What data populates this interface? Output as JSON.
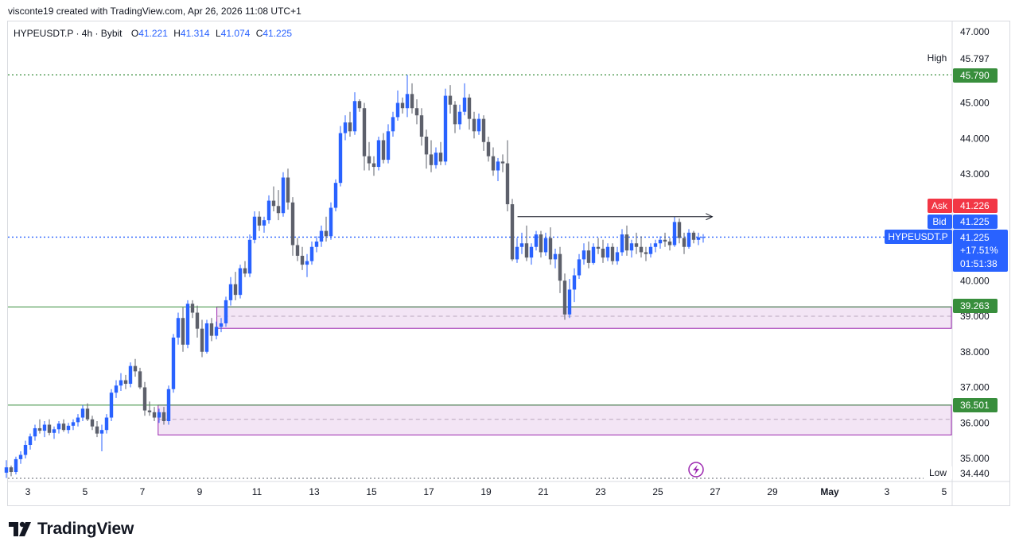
{
  "header": {
    "attribution": "visconte19 created with TradingView.com, Apr 26, 2026 11:08 UTC+1"
  },
  "legend": {
    "symbol": "HYPEUSDT.P · 4h · Bybit",
    "open_label": "O",
    "open": "41.221",
    "high_label": "H",
    "high": "41.314",
    "low_label": "L",
    "low": "41.074",
    "close_label": "C",
    "close": "41.225"
  },
  "footer": {
    "brand": "TradingView"
  },
  "chart_data": {
    "type": "candlestick",
    "symbol": "HYPEUSDT.P",
    "timeframe": "4h",
    "exchange": "Bybit",
    "ylim": [
      34.3,
      47.3
    ],
    "y_ticks": [
      "47.000",
      "45.000",
      "44.000",
      "43.000",
      "40.000",
      "39.000",
      "38.000",
      "37.000",
      "36.000",
      "35.000"
    ],
    "y_tick_values": [
      47,
      45,
      44,
      43,
      40,
      39,
      38,
      37,
      36,
      35
    ],
    "x_ticks": [
      "3",
      "5",
      "7",
      "9",
      "11",
      "13",
      "15",
      "17",
      "19",
      "21",
      "23",
      "25",
      "27",
      "29",
      "May",
      "3",
      "5"
    ],
    "x_tick_days": [
      3,
      5,
      7,
      9,
      11,
      13,
      15,
      17,
      19,
      21,
      23,
      25,
      27,
      29,
      31,
      33,
      35
    ],
    "xlim_days": [
      2.2,
      35.3
    ],
    "price_labels": {
      "high_tag": "High",
      "high_value": "45.797",
      "level_1": "45.790",
      "ask_tag": "Ask",
      "ask_value": "41.226",
      "bid_tag": "Bid",
      "bid_value": "41.225",
      "symbol_tag": "HYPEUSDT.P",
      "last_value": "41.225",
      "change": "+17.51%",
      "countdown": "01:51:38",
      "level_2": "39.263",
      "level_3": "36.501",
      "low_tag": "Low",
      "low_value": "34.440"
    },
    "levels": {
      "high": 45.797,
      "resistance": 45.79,
      "last": 41.225,
      "support_1": 39.263,
      "support_2": 36.501,
      "low": 34.44
    },
    "zones": [
      {
        "from_day": 9.6,
        "top": 39.263,
        "bottom": 38.66,
        "mid": 39.0
      },
      {
        "from_day": 7.55,
        "top": 36.501,
        "bottom": 35.66,
        "mid": 36.1
      }
    ],
    "arrow_line": {
      "from_day": 20.1,
      "to_day": 26.9,
      "price": 41.8
    },
    "colors": {
      "up": "#2962ff",
      "down": "#5d606b",
      "green_level": "#388e3c",
      "ask": "#f23645",
      "bid": "#2962ff",
      "zone_fill": "#f3e5f5",
      "zone_border": "#9c27b0"
    },
    "candles_ohlc_by_4h": [
      [
        34.6,
        34.95,
        34.45,
        34.75
      ],
      [
        34.75,
        34.8,
        34.5,
        34.62
      ],
      [
        34.62,
        35.05,
        34.55,
        34.98
      ],
      [
        34.98,
        35.2,
        34.85,
        35.1
      ],
      [
        35.1,
        35.5,
        35.0,
        35.38
      ],
      [
        35.38,
        35.7,
        35.25,
        35.62
      ],
      [
        35.62,
        35.95,
        35.5,
        35.85
      ],
      [
        35.85,
        36.1,
        35.7,
        35.78
      ],
      [
        35.78,
        36.05,
        35.6,
        35.95
      ],
      [
        35.95,
        36.1,
        35.65,
        35.72
      ],
      [
        35.72,
        35.9,
        35.55,
        35.82
      ],
      [
        35.82,
        36.05,
        35.7,
        35.98
      ],
      [
        35.98,
        36.1,
        35.75,
        35.8
      ],
      [
        35.8,
        36.0,
        35.7,
        35.92
      ],
      [
        35.92,
        36.1,
        35.8,
        36.02
      ],
      [
        36.02,
        36.25,
        35.9,
        36.15
      ],
      [
        36.15,
        36.5,
        36.05,
        36.4
      ],
      [
        36.4,
        36.55,
        36.05,
        36.1
      ],
      [
        36.1,
        36.2,
        35.8,
        35.9
      ],
      [
        35.9,
        36.05,
        35.6,
        35.7
      ],
      [
        35.7,
        35.95,
        35.2,
        35.8
      ],
      [
        35.8,
        36.25,
        35.7,
        36.15
      ],
      [
        36.15,
        36.95,
        36.05,
        36.85
      ],
      [
        36.85,
        37.2,
        36.7,
        37.05
      ],
      [
        37.05,
        37.4,
        36.9,
        37.2
      ],
      [
        37.2,
        37.35,
        36.95,
        37.1
      ],
      [
        37.1,
        37.7,
        37.0,
        37.6
      ],
      [
        37.6,
        37.8,
        37.3,
        37.45
      ],
      [
        37.45,
        37.55,
        36.95,
        37.0
      ],
      [
        37.0,
        37.15,
        36.2,
        36.35
      ],
      [
        36.35,
        36.6,
        36.2,
        36.3
      ],
      [
        36.3,
        36.45,
        36.05,
        36.15
      ],
      [
        36.15,
        36.4,
        36.0,
        36.3
      ],
      [
        36.3,
        36.45,
        35.95,
        36.05
      ],
      [
        36.05,
        37.05,
        35.95,
        36.95
      ],
      [
        36.95,
        38.5,
        36.85,
        38.4
      ],
      [
        38.4,
        39.1,
        38.2,
        38.95
      ],
      [
        38.95,
        39.25,
        38.0,
        38.2
      ],
      [
        38.2,
        39.45,
        38.1,
        39.35
      ],
      [
        39.35,
        39.45,
        38.95,
        39.1
      ],
      [
        39.1,
        39.3,
        38.4,
        38.65
      ],
      [
        38.65,
        38.9,
        37.85,
        38.0
      ],
      [
        38.0,
        38.9,
        37.95,
        38.8
      ],
      [
        38.8,
        38.95,
        38.3,
        38.45
      ],
      [
        38.45,
        38.85,
        38.35,
        38.7
      ],
      [
        38.7,
        38.95,
        38.55,
        38.8
      ],
      [
        38.8,
        39.55,
        38.7,
        39.45
      ],
      [
        39.45,
        40.1,
        39.3,
        39.9
      ],
      [
        39.9,
        40.25,
        39.45,
        39.6
      ],
      [
        39.6,
        40.45,
        39.5,
        40.35
      ],
      [
        40.35,
        40.55,
        40.1,
        40.2
      ],
      [
        40.2,
        41.3,
        40.1,
        41.15
      ],
      [
        41.15,
        41.95,
        41.05,
        41.8
      ],
      [
        41.8,
        41.95,
        41.4,
        41.55
      ],
      [
        41.55,
        41.8,
        41.35,
        41.7
      ],
      [
        41.7,
        42.4,
        41.6,
        42.25
      ],
      [
        42.25,
        42.65,
        41.95,
        42.1
      ],
      [
        42.1,
        42.55,
        41.7,
        41.9
      ],
      [
        41.9,
        43.05,
        41.8,
        42.9
      ],
      [
        42.9,
        43.15,
        42.0,
        42.2
      ],
      [
        42.2,
        42.35,
        40.7,
        41.0
      ],
      [
        41.0,
        41.2,
        40.55,
        40.7
      ],
      [
        40.7,
        40.95,
        40.3,
        40.45
      ],
      [
        40.45,
        40.75,
        40.1,
        40.55
      ],
      [
        40.55,
        41.1,
        40.45,
        40.95
      ],
      [
        40.95,
        41.25,
        40.8,
        41.1
      ],
      [
        41.1,
        41.55,
        40.95,
        41.4
      ],
      [
        41.4,
        41.8,
        41.1,
        41.25
      ],
      [
        41.25,
        42.2,
        41.15,
        42.05
      ],
      [
        42.05,
        42.85,
        41.95,
        42.75
      ],
      [
        42.75,
        44.35,
        42.65,
        44.15
      ],
      [
        44.15,
        44.65,
        43.95,
        44.45
      ],
      [
        44.45,
        44.75,
        44.05,
        44.2
      ],
      [
        44.2,
        45.3,
        44.1,
        45.05
      ],
      [
        45.05,
        45.1,
        44.75,
        44.85
      ],
      [
        44.85,
        45.0,
        43.1,
        43.5
      ],
      [
        43.5,
        43.9,
        43.1,
        43.3
      ],
      [
        43.3,
        43.5,
        42.95,
        43.2
      ],
      [
        43.2,
        44.05,
        43.1,
        43.95
      ],
      [
        43.95,
        44.15,
        43.3,
        43.4
      ],
      [
        43.4,
        44.4,
        43.3,
        44.2
      ],
      [
        44.2,
        44.75,
        44.05,
        44.6
      ],
      [
        44.6,
        45.35,
        44.5,
        45.0
      ],
      [
        45.0,
        45.15,
        44.7,
        44.85
      ],
      [
        44.85,
        45.79,
        44.6,
        45.25
      ],
      [
        45.25,
        45.55,
        44.7,
        44.85
      ],
      [
        44.85,
        45.1,
        44.4,
        44.65
      ],
      [
        44.65,
        44.85,
        43.8,
        44.05
      ],
      [
        44.05,
        44.25,
        43.15,
        43.55
      ],
      [
        43.55,
        43.95,
        43.05,
        43.25
      ],
      [
        43.25,
        43.75,
        43.15,
        43.6
      ],
      [
        43.6,
        43.9,
        43.25,
        43.35
      ],
      [
        43.35,
        45.4,
        43.25,
        45.2
      ],
      [
        45.2,
        45.5,
        44.7,
        44.95
      ],
      [
        44.95,
        45.05,
        44.15,
        44.4
      ],
      [
        44.4,
        44.95,
        44.25,
        44.75
      ],
      [
        44.75,
        45.55,
        44.65,
        45.15
      ],
      [
        45.15,
        45.25,
        44.25,
        44.55
      ],
      [
        44.55,
        44.75,
        44.0,
        44.2
      ],
      [
        44.2,
        44.7,
        44.1,
        44.55
      ],
      [
        44.55,
        44.65,
        43.65,
        43.9
      ],
      [
        43.9,
        44.05,
        43.35,
        43.5
      ],
      [
        43.5,
        43.75,
        42.95,
        43.1
      ],
      [
        43.1,
        43.45,
        42.8,
        43.35
      ],
      [
        43.35,
        43.55,
        43.05,
        43.3
      ],
      [
        43.3,
        43.95,
        41.95,
        42.15
      ],
      [
        42.15,
        42.3,
        40.55,
        40.6
      ],
      [
        40.6,
        41.2,
        40.5,
        40.95
      ],
      [
        40.95,
        41.35,
        40.75,
        41.05
      ],
      [
        41.05,
        41.55,
        40.55,
        40.65
      ],
      [
        40.65,
        41.05,
        40.45,
        40.95
      ],
      [
        40.95,
        41.4,
        40.85,
        41.3
      ],
      [
        41.3,
        41.4,
        40.65,
        40.8
      ],
      [
        40.8,
        41.35,
        40.7,
        41.2
      ],
      [
        41.2,
        41.5,
        40.45,
        40.6
      ],
      [
        40.6,
        40.9,
        40.35,
        40.75
      ],
      [
        40.75,
        40.95,
        39.65,
        40.0
      ],
      [
        40.0,
        40.2,
        38.9,
        39.05
      ],
      [
        39.05,
        40.05,
        38.95,
        39.75
      ],
      [
        39.75,
        40.35,
        39.4,
        40.15
      ],
      [
        40.15,
        40.75,
        40.05,
        40.6
      ],
      [
        40.6,
        41.05,
        40.45,
        40.85
      ],
      [
        40.85,
        41.1,
        40.35,
        40.5
      ],
      [
        40.5,
        41.05,
        40.45,
        40.95
      ],
      [
        40.95,
        41.2,
        40.75,
        40.9
      ],
      [
        40.9,
        41.15,
        40.5,
        40.65
      ],
      [
        40.65,
        41.05,
        40.55,
        40.95
      ],
      [
        40.95,
        41.05,
        40.45,
        40.55
      ],
      [
        40.55,
        40.95,
        40.45,
        40.8
      ],
      [
        40.8,
        41.45,
        40.7,
        41.3
      ],
      [
        41.3,
        41.55,
        40.7,
        40.85
      ],
      [
        40.85,
        41.15,
        40.65,
        41.05
      ],
      [
        41.05,
        41.35,
        40.75,
        40.95
      ],
      [
        40.95,
        41.25,
        40.65,
        40.8
      ],
      [
        40.8,
        40.95,
        40.55,
        40.75
      ],
      [
        40.75,
        41.05,
        40.65,
        40.95
      ],
      [
        40.95,
        41.15,
        40.8,
        41.05
      ],
      [
        41.05,
        41.25,
        40.9,
        41.15
      ],
      [
        41.15,
        41.35,
        40.95,
        41.1
      ],
      [
        41.1,
        41.2,
        40.85,
        41.0
      ],
      [
        41.0,
        41.8,
        40.95,
        41.65
      ],
      [
        41.65,
        41.75,
        41.05,
        41.2
      ],
      [
        41.2,
        41.35,
        40.75,
        40.95
      ],
      [
        40.95,
        41.45,
        40.9,
        41.35
      ],
      [
        41.35,
        41.4,
        41.05,
        41.15
      ],
      [
        41.15,
        41.35,
        41.0,
        41.22
      ],
      [
        41.22,
        41.31,
        41.07,
        41.225
      ]
    ],
    "first_candle_day": 2.25
  }
}
